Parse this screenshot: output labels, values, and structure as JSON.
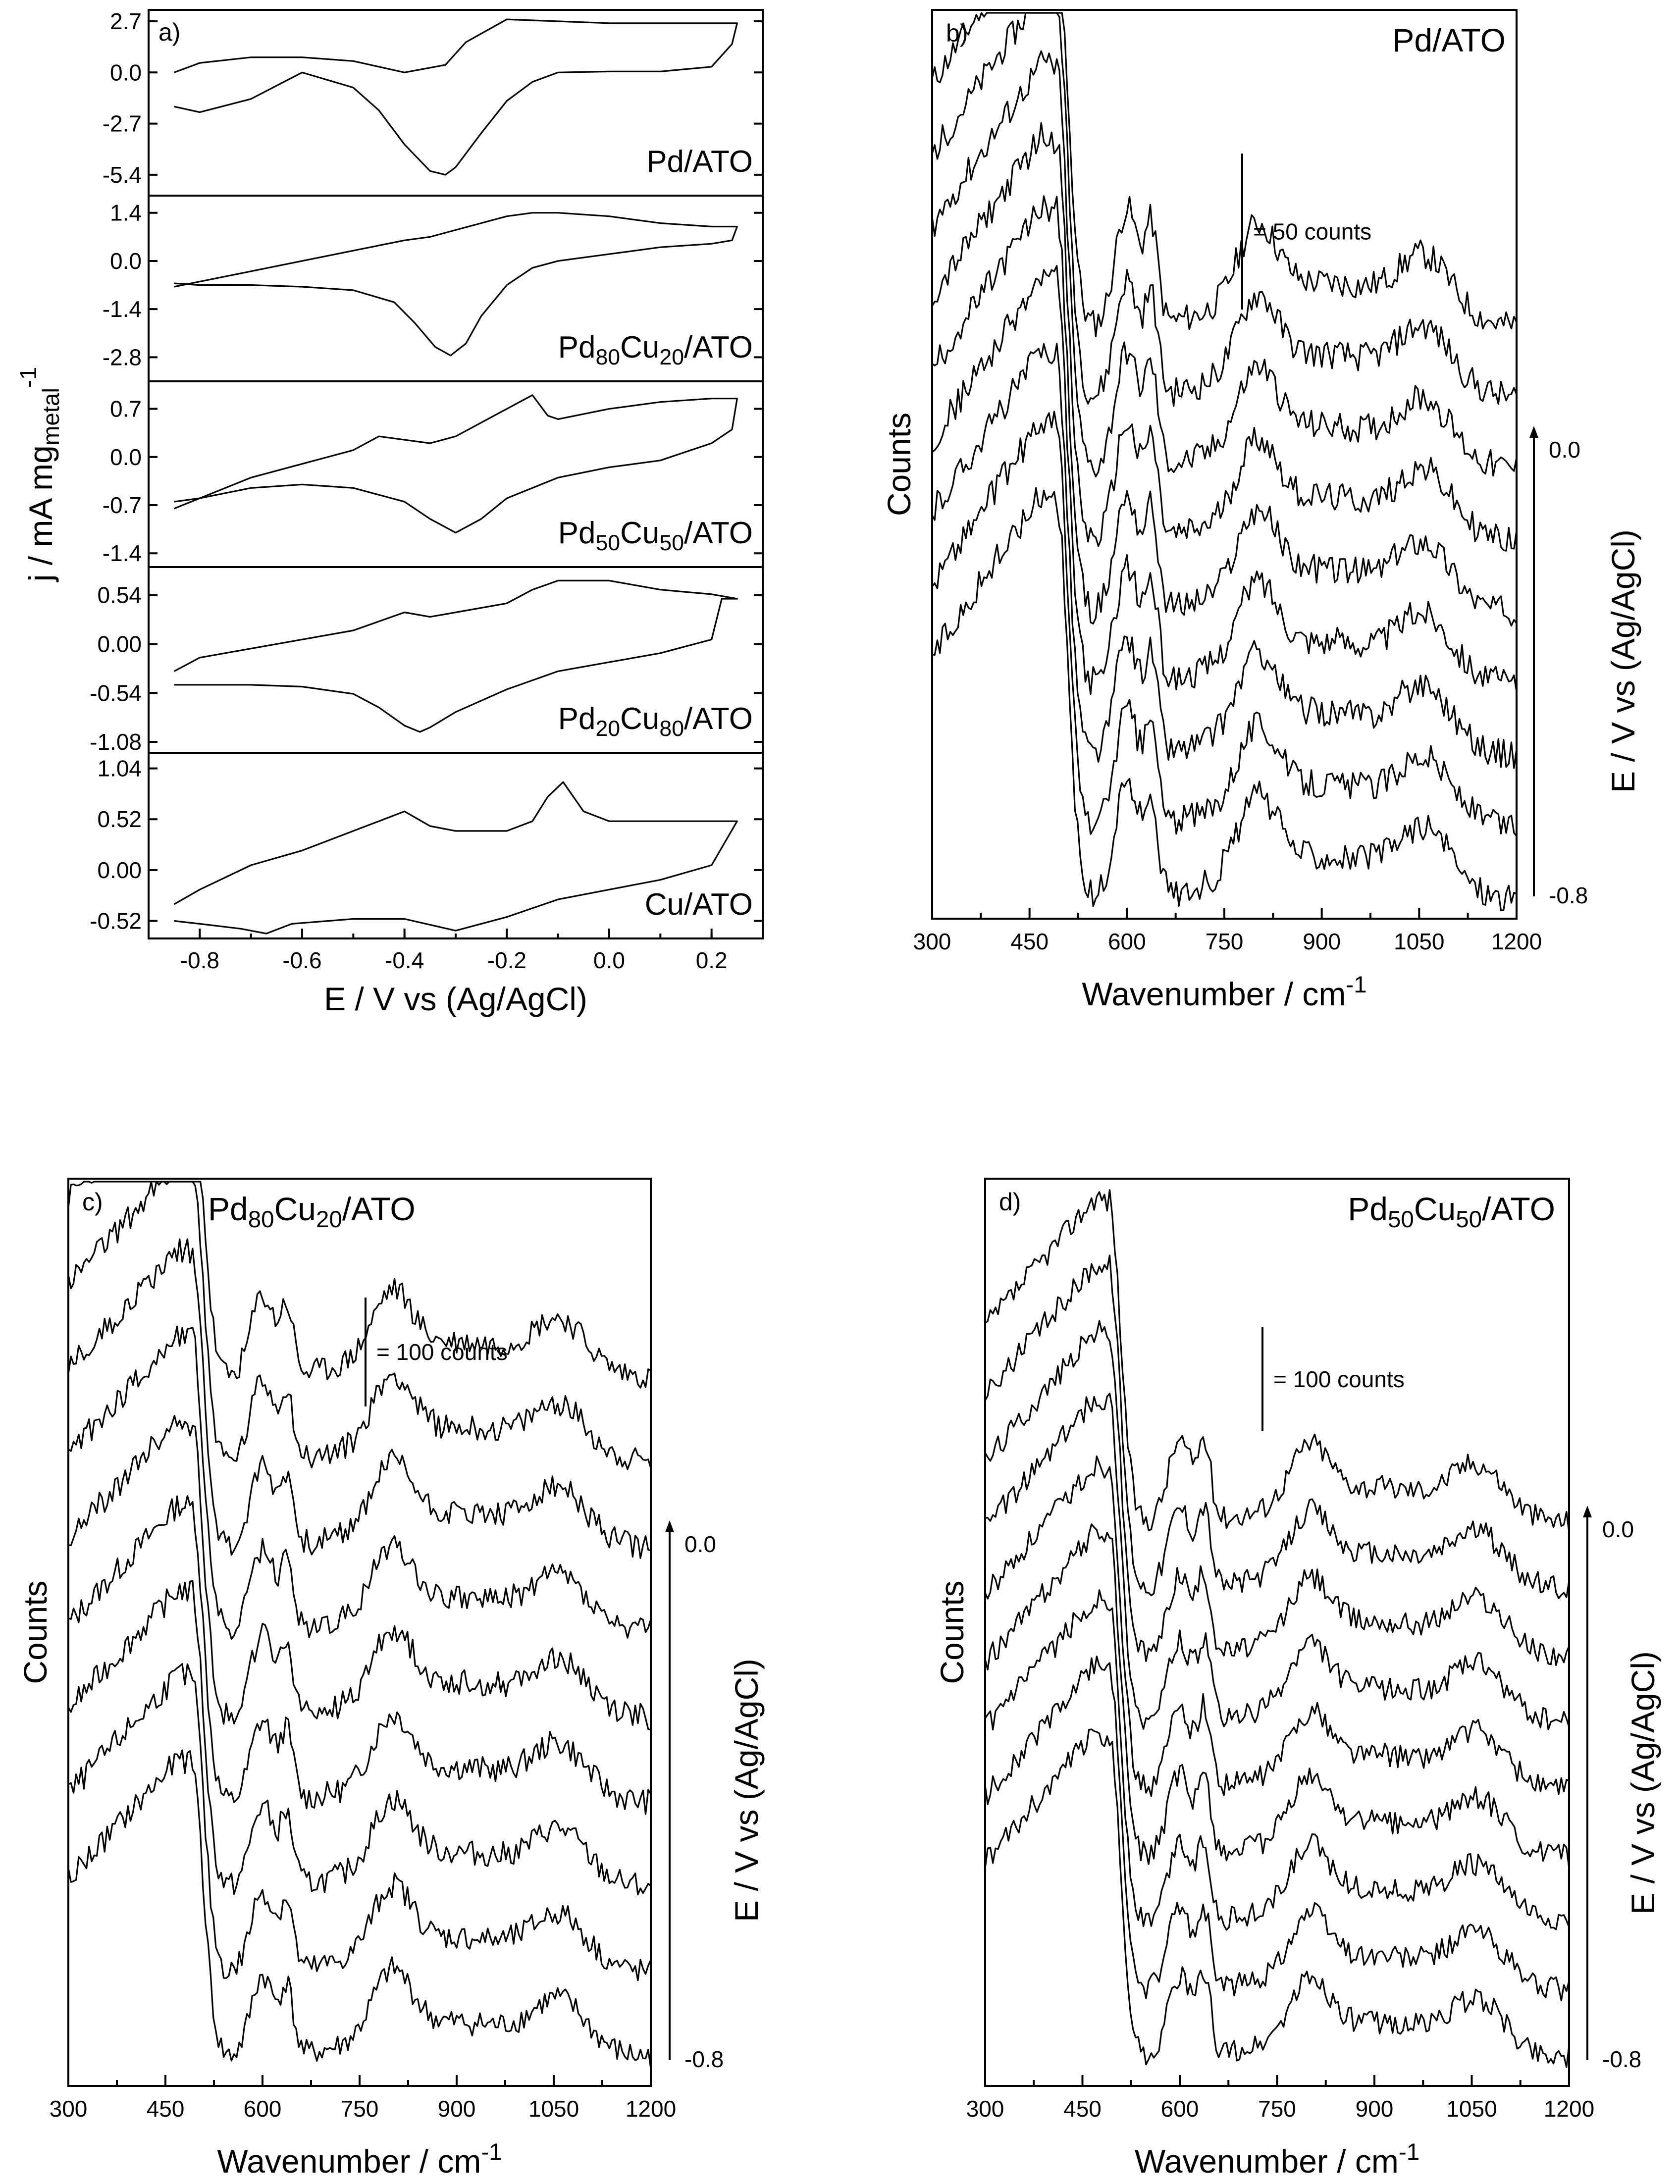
{
  "colors": {
    "line": "#000000",
    "background": "#ffffff"
  },
  "chart_data": [
    {
      "id": "a",
      "type": "line",
      "panel_label": "a)",
      "title": "",
      "xlabel": "E / V vs (Ag/AgCl)",
      "ylabel_main": "j / mA mg",
      "ylabel_sub": "metal",
      "ylabel_sup": "-1",
      "xlim": [
        -0.9,
        0.3
      ],
      "xticks": [
        "-0.8",
        "-0.6",
        "-0.4",
        "-0.2",
        "0.0",
        "0.2"
      ],
      "subplots": [
        {
          "name": "Pd/ATO",
          "label_parts": [
            {
              "t": "Pd/ATO",
              "s": ""
            }
          ],
          "ylim": [
            -6.5,
            3.3
          ],
          "yticks": [
            "2.7",
            "0.0",
            "-2.7",
            "-5.4"
          ],
          "x": [
            -0.85,
            -0.8,
            -0.7,
            -0.6,
            -0.5,
            -0.45,
            -0.4,
            -0.35,
            -0.32,
            -0.3,
            -0.25,
            -0.2,
            -0.15,
            -0.1,
            0.0,
            0.1,
            0.2,
            0.24,
            0.25,
            0.22,
            0.15,
            0.0,
            -0.1,
            -0.2,
            -0.28,
            -0.32,
            -0.4,
            -0.5,
            -0.6,
            -0.7,
            -0.8,
            -0.85
          ],
          "y": [
            -1.8,
            -2.1,
            -1.4,
            0.0,
            -0.8,
            -2.0,
            -3.8,
            -5.2,
            -5.4,
            -5.0,
            -3.2,
            -1.5,
            -0.5,
            0.0,
            0.05,
            0.05,
            0.3,
            1.5,
            2.6,
            2.6,
            2.6,
            2.6,
            2.7,
            2.8,
            1.6,
            0.4,
            0.0,
            0.6,
            0.8,
            0.8,
            0.5,
            0.0
          ]
        },
        {
          "name": "Pd80Cu20/ATO",
          "label_parts": [
            {
              "t": "Pd",
              "s": ""
            },
            {
              "t": "80",
              "s": "sub"
            },
            {
              "t": "Cu",
              "s": ""
            },
            {
              "t": "20",
              "s": "sub"
            },
            {
              "t": "/ATO",
              "s": ""
            }
          ],
          "ylim": [
            -3.5,
            1.9
          ],
          "yticks": [
            "1.4",
            "0.0",
            "-1.4",
            "-2.8"
          ],
          "x": [
            -0.85,
            -0.8,
            -0.7,
            -0.6,
            -0.5,
            -0.42,
            -0.38,
            -0.34,
            -0.31,
            -0.28,
            -0.25,
            -0.2,
            -0.15,
            -0.1,
            0.0,
            0.1,
            0.2,
            0.24,
            0.25,
            0.2,
            0.1,
            0.0,
            -0.1,
            -0.15,
            -0.2,
            -0.35,
            -0.4,
            -0.5,
            -0.6,
            -0.7,
            -0.8,
            -0.85
          ],
          "y": [
            -0.65,
            -0.7,
            -0.7,
            -0.75,
            -0.85,
            -1.2,
            -1.8,
            -2.5,
            -2.75,
            -2.4,
            -1.6,
            -0.7,
            -0.2,
            0.0,
            0.2,
            0.4,
            0.5,
            0.6,
            1.0,
            1.0,
            1.1,
            1.3,
            1.4,
            1.4,
            1.3,
            0.7,
            0.6,
            0.3,
            0.0,
            -0.3,
            -0.6,
            -0.75
          ]
        },
        {
          "name": "Pd50Cu50/ATO",
          "label_parts": [
            {
              "t": "Pd",
              "s": ""
            },
            {
              "t": "50",
              "s": "sub"
            },
            {
              "t": "Cu",
              "s": ""
            },
            {
              "t": "50",
              "s": "sub"
            },
            {
              "t": "/ATO",
              "s": ""
            }
          ],
          "ylim": [
            -1.6,
            1.1
          ],
          "yticks": [
            "0.7",
            "0.0",
            "-0.7",
            "-1.4"
          ],
          "x": [
            -0.85,
            -0.8,
            -0.7,
            -0.6,
            -0.5,
            -0.4,
            -0.35,
            -0.3,
            -0.25,
            -0.2,
            -0.1,
            0.0,
            0.1,
            0.2,
            0.24,
            0.25,
            0.2,
            0.1,
            0.0,
            -0.1,
            -0.12,
            -0.15,
            -0.2,
            -0.3,
            -0.35,
            -0.4,
            -0.45,
            -0.5,
            -0.6,
            -0.7,
            -0.8,
            -0.85
          ],
          "y": [
            -0.65,
            -0.6,
            -0.45,
            -0.4,
            -0.45,
            -0.65,
            -0.9,
            -1.1,
            -0.9,
            -0.6,
            -0.3,
            -0.15,
            -0.05,
            0.2,
            0.4,
            0.85,
            0.85,
            0.8,
            0.7,
            0.55,
            0.6,
            0.9,
            0.7,
            0.3,
            0.2,
            0.25,
            0.3,
            0.1,
            -0.1,
            -0.3,
            -0.6,
            -0.75
          ]
        },
        {
          "name": "Pd20Cu80/ATO",
          "label_parts": [
            {
              "t": "Pd",
              "s": ""
            },
            {
              "t": "20",
              "s": "sub"
            },
            {
              "t": "Cu",
              "s": ""
            },
            {
              "t": "80",
              "s": "sub"
            },
            {
              "t": "/ATO",
              "s": ""
            }
          ],
          "ylim": [
            -1.2,
            0.85
          ],
          "yticks": [
            "0.54",
            "0.00",
            "-0.54",
            "-1.08"
          ],
          "x": [
            -0.85,
            -0.8,
            -0.7,
            -0.6,
            -0.5,
            -0.45,
            -0.4,
            -0.37,
            -0.35,
            -0.3,
            -0.2,
            -0.1,
            0.0,
            0.1,
            0.2,
            0.22,
            0.25,
            0.2,
            0.1,
            0.0,
            -0.1,
            -0.15,
            -0.2,
            -0.3,
            -0.35,
            -0.4,
            -0.45,
            -0.5,
            -0.6,
            -0.7,
            -0.8,
            -0.85
          ],
          "y": [
            -0.45,
            -0.45,
            -0.45,
            -0.47,
            -0.55,
            -0.7,
            -0.9,
            -0.97,
            -0.92,
            -0.75,
            -0.5,
            -0.3,
            -0.2,
            -0.1,
            0.05,
            0.5,
            0.5,
            0.55,
            0.6,
            0.7,
            0.7,
            0.6,
            0.45,
            0.35,
            0.3,
            0.35,
            0.25,
            0.15,
            0.05,
            -0.05,
            -0.15,
            -0.3
          ]
        },
        {
          "name": "Cu/ATO",
          "label_parts": [
            {
              "t": "Cu/ATO",
              "s": ""
            }
          ],
          "ylim": [
            -0.7,
            1.2
          ],
          "yticks": [
            "1.04",
            "0.52",
            "0.00",
            "-0.52"
          ],
          "x": [
            -0.85,
            -0.8,
            -0.72,
            -0.67,
            -0.62,
            -0.5,
            -0.4,
            -0.3,
            -0.2,
            -0.1,
            0.0,
            0.1,
            0.2,
            0.25,
            0.2,
            0.1,
            0.0,
            -0.05,
            -0.09,
            -0.12,
            -0.15,
            -0.2,
            -0.3,
            -0.35,
            -0.4,
            -0.45,
            -0.5,
            -0.6,
            -0.7,
            -0.8,
            -0.85
          ],
          "y": [
            -0.52,
            -0.55,
            -0.6,
            -0.65,
            -0.55,
            -0.5,
            -0.5,
            -0.62,
            -0.48,
            -0.3,
            -0.2,
            -0.1,
            0.05,
            0.5,
            0.5,
            0.5,
            0.5,
            0.6,
            0.9,
            0.75,
            0.5,
            0.4,
            0.4,
            0.45,
            0.6,
            0.5,
            0.4,
            0.2,
            0.05,
            -0.2,
            -0.35
          ]
        }
      ]
    },
    {
      "id": "b",
      "type": "line",
      "panel_label": "b)",
      "title": "Pd/ATO",
      "title_parts": [
        {
          "t": "Pd/ATO",
          "s": ""
        }
      ],
      "xlabel_main": "Wavenumber / cm",
      "xlabel_sup": "-1",
      "ylabel": "Counts",
      "right_label": "E / V vs (Ag/AgCl)",
      "potential_top": "0.0",
      "potential_bottom": "-0.8",
      "scale_bar_label": "= 50 counts",
      "xlim": [
        300,
        1200
      ],
      "xticks": [
        "300",
        "450",
        "600",
        "750",
        "900",
        "1050",
        "1200"
      ],
      "ylim": [
        0,
        100
      ],
      "series_count": 9,
      "baseline_top": 65,
      "baseline_bottom": 2,
      "peak_height": 45,
      "band_heights": [
        13,
        10,
        8,
        6,
        5
      ],
      "seed": 11,
      "noise": 1.6
    },
    {
      "id": "c",
      "type": "line",
      "panel_label": "c)",
      "title": "Pd80Cu20/ATO",
      "title_parts": [
        {
          "t": "Pd",
          "s": ""
        },
        {
          "t": "80",
          "s": "sub"
        },
        {
          "t": "Cu",
          "s": ""
        },
        {
          "t": "20",
          "s": "sub"
        },
        {
          "t": "/ATO",
          "s": ""
        }
      ],
      "xlabel_main": "Wavenumber / cm",
      "xlabel_sup": "-1",
      "ylabel": "Counts",
      "right_label": "E / V vs (Ag/AgCl)",
      "potential_top": "0.0",
      "potential_bottom": "-0.8",
      "scale_bar_label": "= 100 counts",
      "xlim": [
        300,
        1200
      ],
      "xticks": [
        "300",
        "450",
        "600",
        "750",
        "900",
        "1050",
        "1200"
      ],
      "ylim": [
        0,
        100
      ],
      "series_count": 9,
      "baseline_top": 78,
      "baseline_bottom": 3,
      "peak_height": 33,
      "band_heights": [
        9,
        7,
        7,
        5,
        4
      ],
      "seed": 23,
      "noise": 1.4
    },
    {
      "id": "d",
      "type": "line",
      "panel_label": "d)",
      "title": "Pd50Cu50/ATO",
      "title_parts": [
        {
          "t": "Pd",
          "s": ""
        },
        {
          "t": "50",
          "s": "sub"
        },
        {
          "t": "Cu",
          "s": ""
        },
        {
          "t": "50",
          "s": "sub"
        },
        {
          "t": "/ATO",
          "s": ""
        }
      ],
      "xlabel_main": "Wavenumber / cm",
      "xlabel_sup": "-1",
      "ylabel": "Counts",
      "right_label": "E / V vs (Ag/AgCl)",
      "potential_top": "0.0",
      "potential_bottom": "-0.8",
      "scale_bar_label": "= 100 counts",
      "xlim": [
        300,
        1200
      ],
      "xticks": [
        "300",
        "450",
        "600",
        "750",
        "900",
        "1050",
        "1200"
      ],
      "ylim": [
        0,
        100
      ],
      "series_count": 9,
      "baseline_top": 62,
      "baseline_bottom": 3,
      "peak_height": 36,
      "band_heights": [
        9,
        8,
        6,
        5,
        4
      ],
      "seed": 37,
      "noise": 1.3
    }
  ]
}
